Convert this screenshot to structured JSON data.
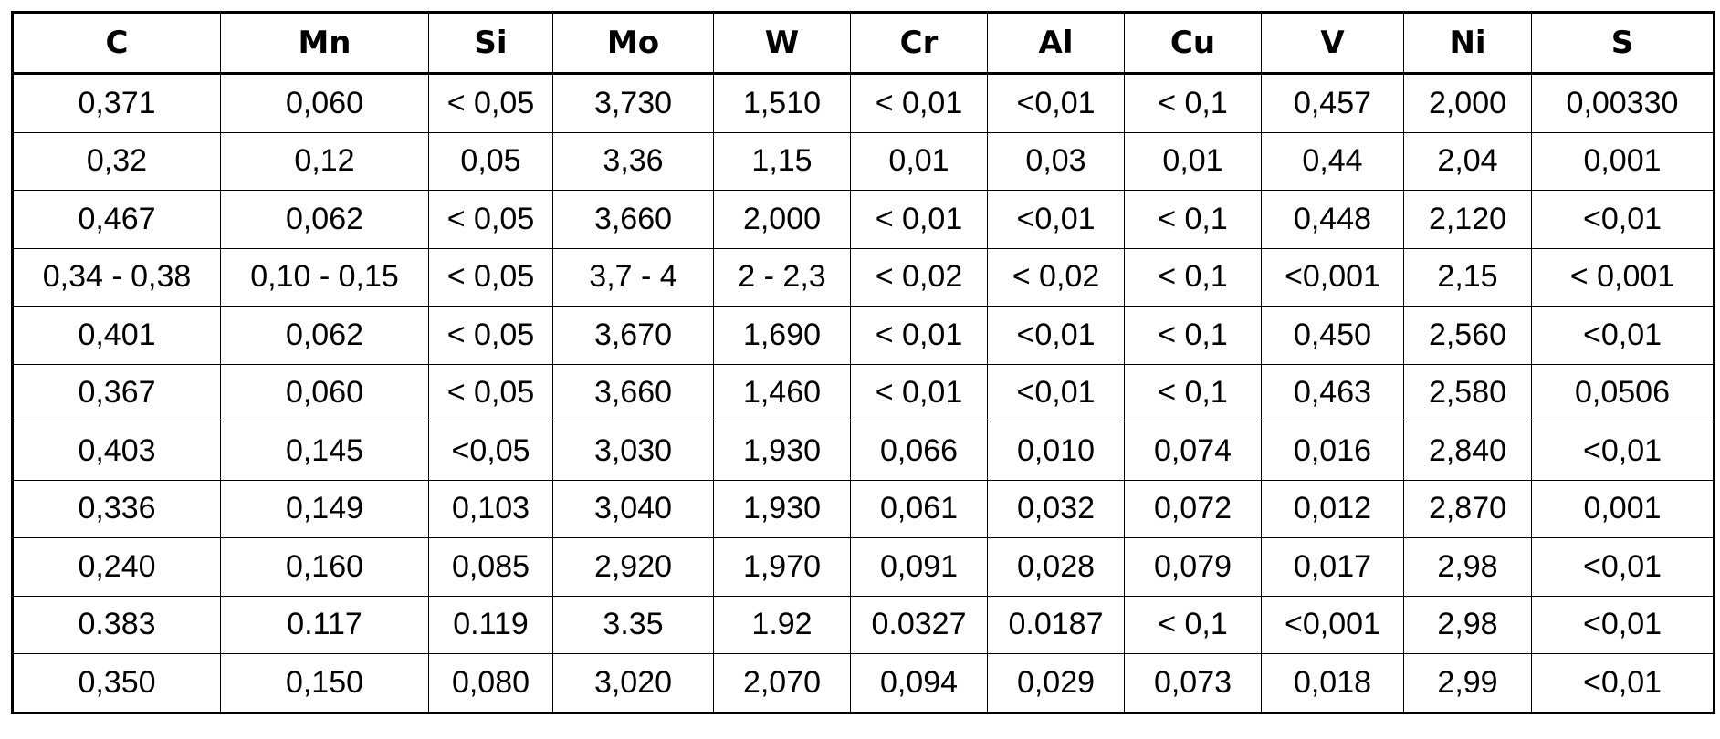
{
  "table": {
    "headers": [
      "C",
      "Mn",
      "Si",
      "Mo",
      "W",
      "Cr",
      "Al",
      "Cu",
      "V",
      "Ni",
      "S"
    ],
    "rows": [
      [
        "0,371",
        "0,060",
        "< 0,05",
        "3,730",
        "1,510",
        "< 0,01",
        "<0,01",
        "< 0,1",
        "0,457",
        "2,000",
        "0,00330"
      ],
      [
        "0,32",
        "0,12",
        "0,05",
        "3,36",
        "1,15",
        "0,01",
        "0,03",
        "0,01",
        "0,44",
        "2,04",
        "0,001"
      ],
      [
        "0,467",
        "0,062",
        "< 0,05",
        "3,660",
        "2,000",
        "< 0,01",
        "<0,01",
        "< 0,1",
        "0,448",
        "2,120",
        "<0,01"
      ],
      [
        "0,34 - 0,38",
        "0,10 - 0,15",
        "< 0,05",
        "3,7 - 4",
        "2 - 2,3",
        "< 0,02",
        "< 0,02",
        "< 0,1",
        "<0,001",
        "2,15",
        "< 0,001"
      ],
      [
        "0,401",
        "0,062",
        "< 0,05",
        "3,670",
        "1,690",
        "< 0,01",
        "<0,01",
        "< 0,1",
        "0,450",
        "2,560",
        "<0,01"
      ],
      [
        "0,367",
        "0,060",
        "< 0,05",
        "3,660",
        "1,460",
        "< 0,01",
        "<0,01",
        "< 0,1",
        "0,463",
        "2,580",
        "0,0506"
      ],
      [
        "0,403",
        "0,145",
        "<0,05",
        "3,030",
        "1,930",
        "0,066",
        "0,010",
        "0,074",
        "0,016",
        "2,840",
        "<0,01"
      ],
      [
        "0,336",
        "0,149",
        "0,103",
        "3,040",
        "1,930",
        "0,061",
        "0,032",
        "0,072",
        "0,012",
        "2,870",
        "0,001"
      ],
      [
        "0,240",
        "0,160",
        "0,085",
        "2,920",
        "1,970",
        "0,091",
        "0,028",
        "0,079",
        "0,017",
        "2,98",
        "<0,01"
      ],
      [
        "0.383",
        "0.117",
        "0.119",
        "3.35",
        "1.92",
        "0.0327",
        "0.0187",
        "< 0,1",
        "<0,001",
        "2,98",
        "<0,01"
      ],
      [
        "0,350",
        "0,150",
        "0,080",
        "3,020",
        "2,070",
        "0,094",
        "0,029",
        "0,073",
        "0,018",
        "2,99",
        "<0,01"
      ]
    ]
  }
}
